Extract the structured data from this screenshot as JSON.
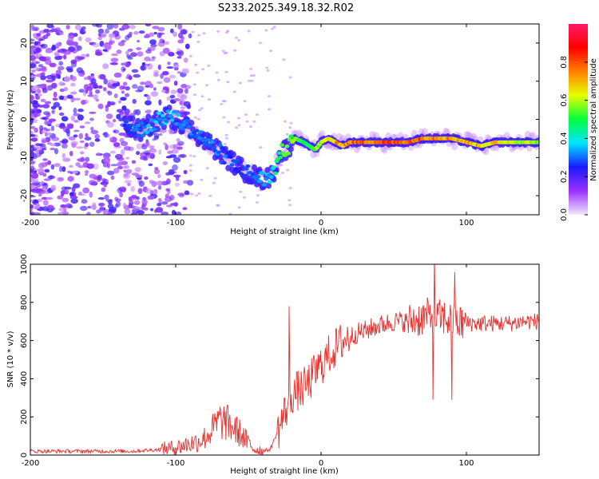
{
  "title": "S233.2025.349.18.32.R02",
  "chart_data": [
    {
      "type": "heatmap",
      "xlabel": "Height of straight line (km)",
      "ylabel": "Frequency (Hz)",
      "xlim": [
        -200,
        150
      ],
      "ylim": [
        -25,
        25
      ],
      "xticks": [
        -200,
        -100,
        0,
        100
      ],
      "yticks": [
        -20,
        -10,
        0,
        10,
        20
      ],
      "colorbar": {
        "label": "Normalized spectral amplitude",
        "range": [
          0,
          1
        ],
        "ticks": [
          0.0,
          0.2,
          0.4,
          0.6,
          0.8
        ],
        "colors": [
          "#f2e6ff",
          "#9b30ff",
          "#1a1aff",
          "#00e5ff",
          "#00ff3c",
          "#e6ff00",
          "#ff8000",
          "#ff0000",
          "#ff1a66"
        ]
      },
      "ridge": {
        "x": [
          -135,
          -125,
          -115,
          -105,
          -95,
          -85,
          -75,
          -65,
          -55,
          -45,
          -38,
          -33,
          -28,
          -22,
          -18,
          -12,
          -8,
          -4,
          0,
          5,
          10,
          15,
          20,
          30,
          40,
          50,
          60,
          70,
          80,
          90,
          100,
          110,
          120,
          130,
          140,
          150
        ],
        "y": [
          -1,
          -3,
          -1,
          1,
          -1,
          -4,
          -7,
          -10,
          -13,
          -15,
          -16,
          -14,
          -9,
          -7,
          -5,
          -6,
          -7,
          -8,
          -6,
          -5,
          -6,
          -7,
          -6,
          -6,
          -6,
          -6,
          -6,
          -5,
          -5,
          -5,
          -6,
          -7,
          -6,
          -6,
          -6,
          -6
        ],
        "amp": [
          0.25,
          0.3,
          0.35,
          0.35,
          0.35,
          0.3,
          0.3,
          0.3,
          0.25,
          0.3,
          0.35,
          0.4,
          0.5,
          0.55,
          0.55,
          0.55,
          0.5,
          0.55,
          0.6,
          0.65,
          0.7,
          0.75,
          0.78,
          0.8,
          0.82,
          0.82,
          0.82,
          0.8,
          0.8,
          0.75,
          0.72,
          0.7,
          0.68,
          0.65,
          0.62,
          0.6
        ]
      }
    },
    {
      "type": "line",
      "xlabel": "Height of straight line (km)",
      "ylabel": "SNR (10 * v/v)",
      "xlim": [
        -200,
        150
      ],
      "ylim": [
        0,
        1000
      ],
      "xticks": [
        -200,
        -100,
        0,
        100
      ],
      "yticks": [
        0,
        200,
        400,
        600,
        800,
        1000
      ],
      "color": "#e8302e",
      "series": [
        {
          "name": "SNR",
          "x": [
            -200,
            -190,
            -180,
            -170,
            -160,
            -150,
            -140,
            -130,
            -120,
            -110,
            -100,
            -95,
            -90,
            -85,
            -80,
            -75,
            -70,
            -65,
            -60,
            -55,
            -50,
            -45,
            -40,
            -35,
            -30,
            -25,
            -20,
            -15,
            -10,
            -5,
            0,
            5,
            10,
            15,
            20,
            25,
            30,
            40,
            50,
            60,
            70,
            75,
            80,
            85,
            90,
            95,
            100,
            110,
            120,
            130,
            140,
            150
          ],
          "y": [
            20,
            20,
            20,
            20,
            20,
            20,
            20,
            20,
            25,
            30,
            40,
            50,
            60,
            70,
            90,
            130,
            180,
            170,
            140,
            110,
            60,
            30,
            20,
            30,
            120,
            220,
            320,
            340,
            360,
            420,
            470,
            520,
            560,
            600,
            620,
            640,
            650,
            680,
            700,
            700,
            720,
            730,
            720,
            720,
            700,
            690,
            690,
            690,
            690,
            690,
            700,
            700
          ]
        }
      ],
      "spikes": [
        {
          "x": -22,
          "y": 780
        },
        {
          "x": 78,
          "y": 1040
        },
        {
          "x": 77,
          "y": 290
        },
        {
          "x": 90,
          "y": 290
        },
        {
          "x": 92,
          "y": 960
        }
      ]
    }
  ]
}
